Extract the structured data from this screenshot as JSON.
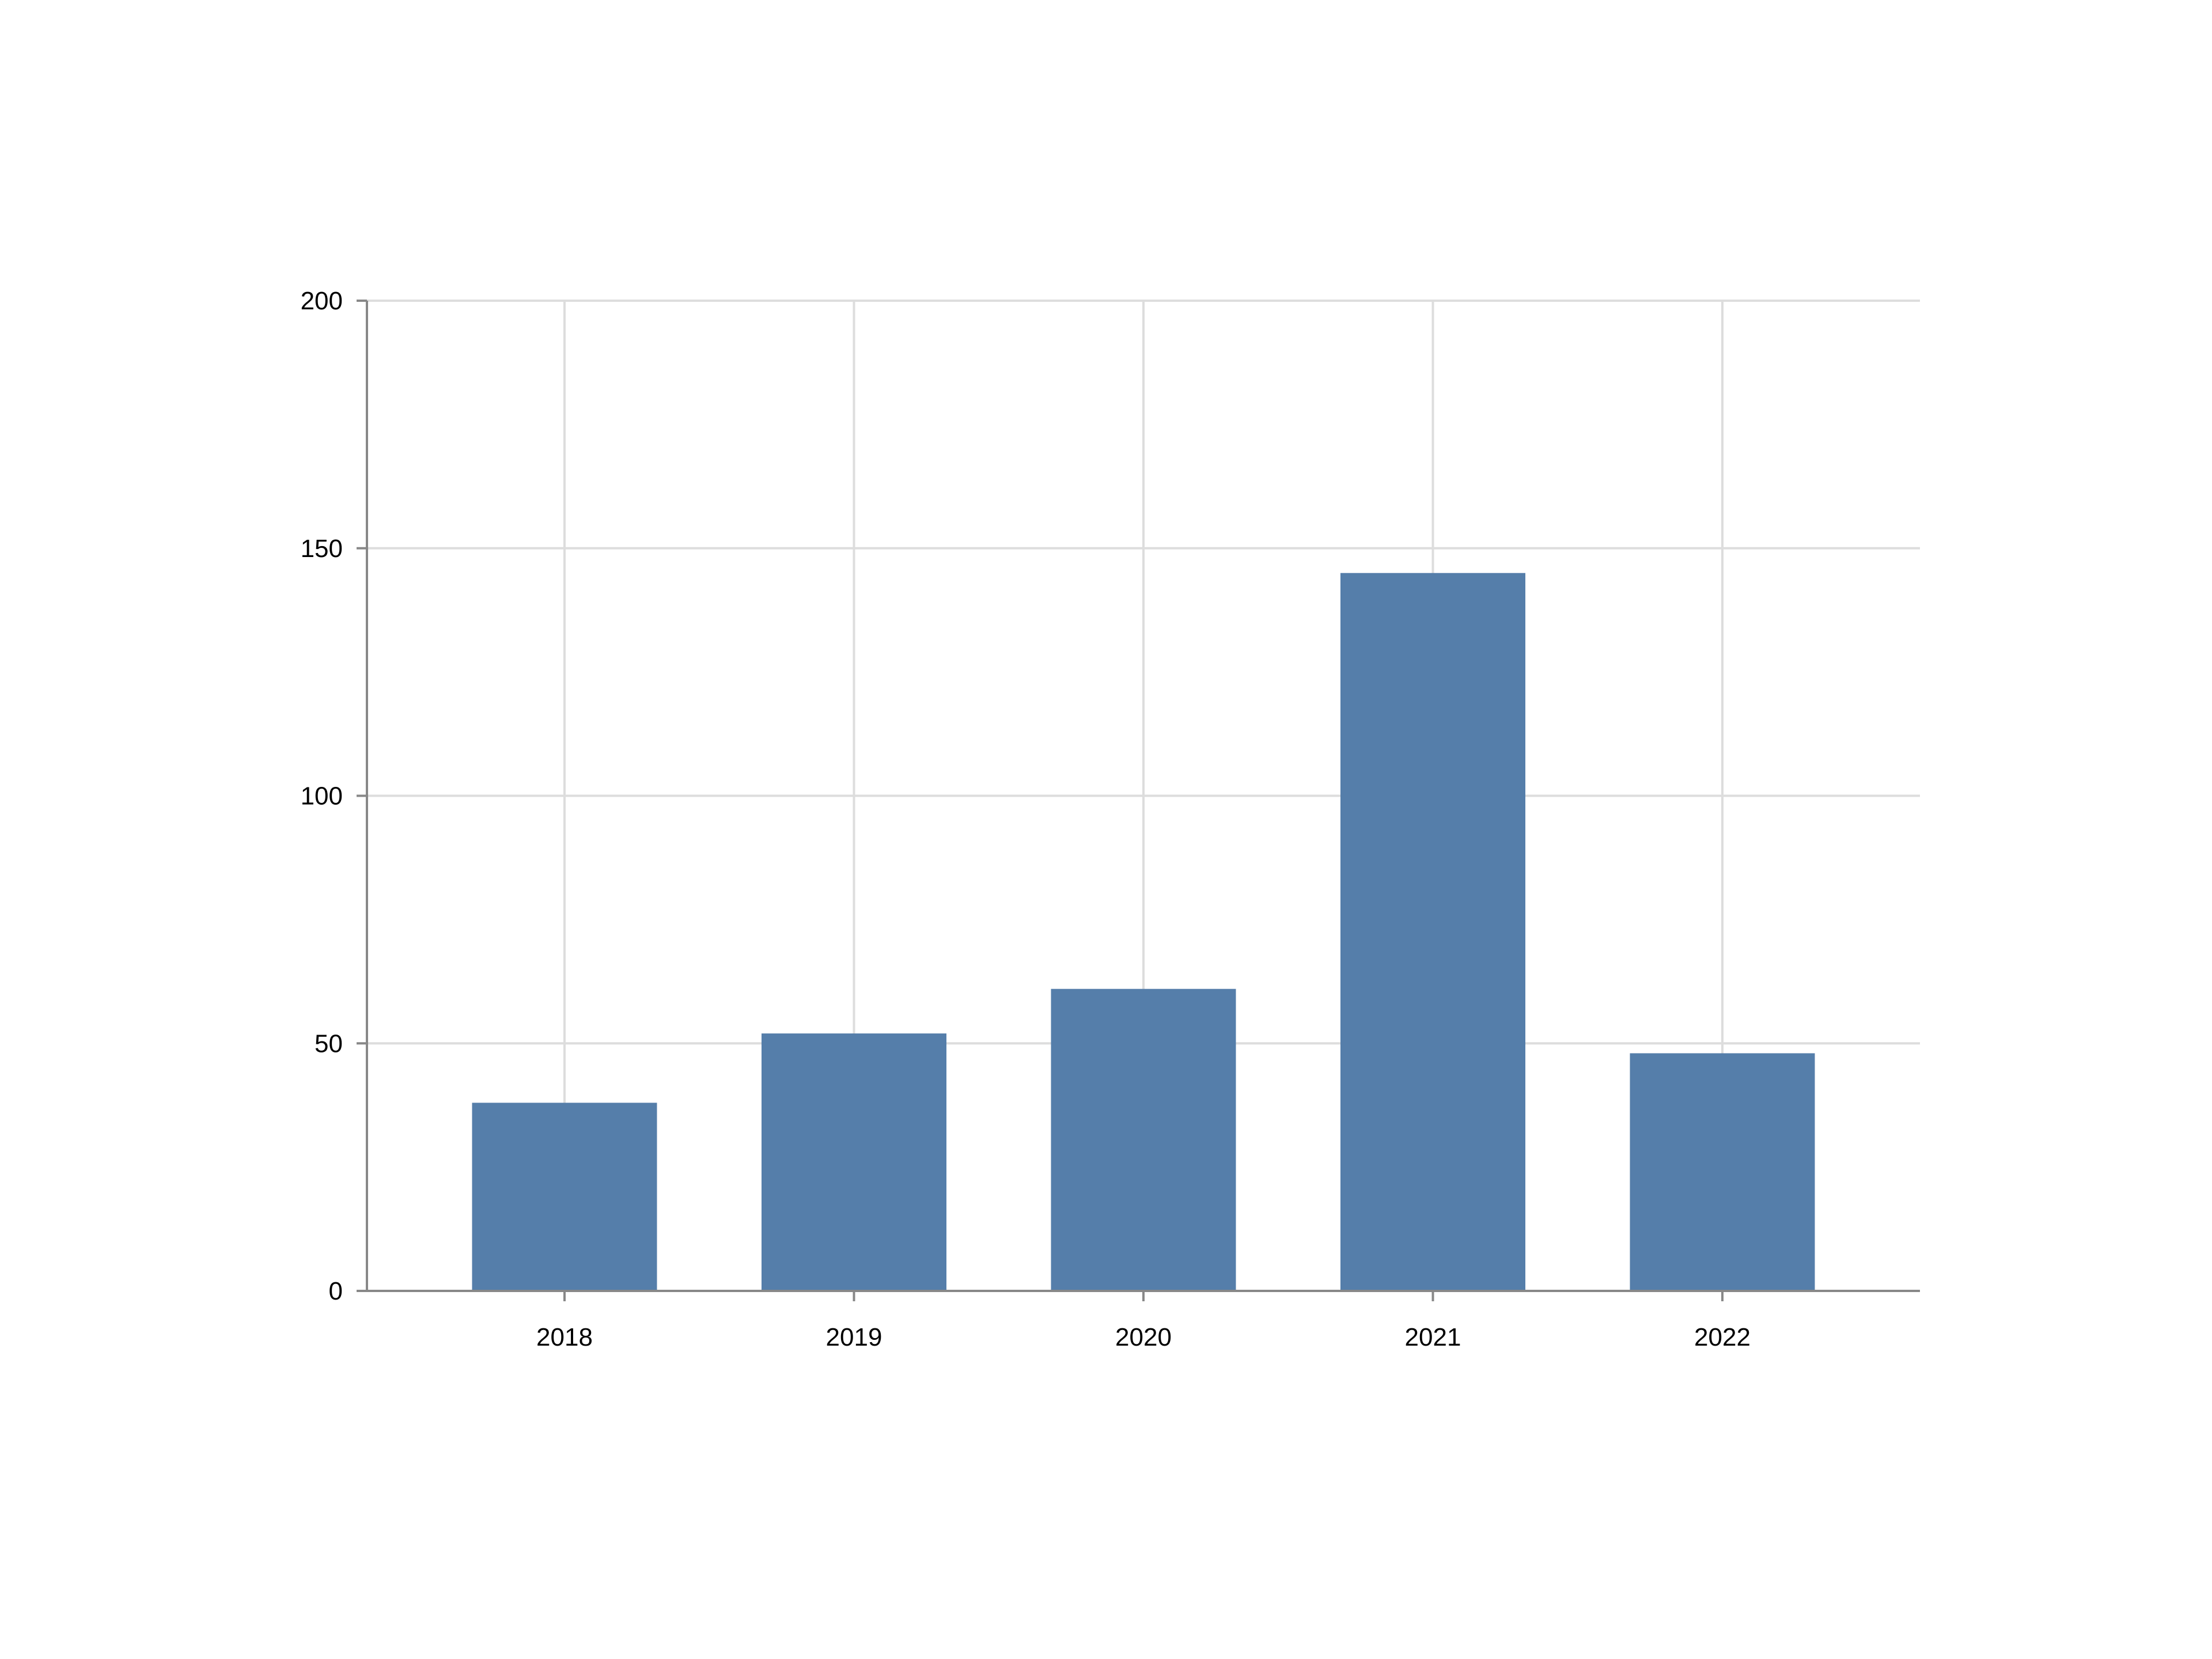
{
  "chart_data": {
    "type": "bar",
    "categories": [
      "2018",
      "2019",
      "2020",
      "2021",
      "2022"
    ],
    "values": [
      38,
      52,
      61,
      145,
      48
    ],
    "color": "#557eaa",
    "ylim": [
      0,
      200
    ],
    "yticks": [
      0,
      50,
      100,
      150,
      200
    ],
    "grid": true
  }
}
